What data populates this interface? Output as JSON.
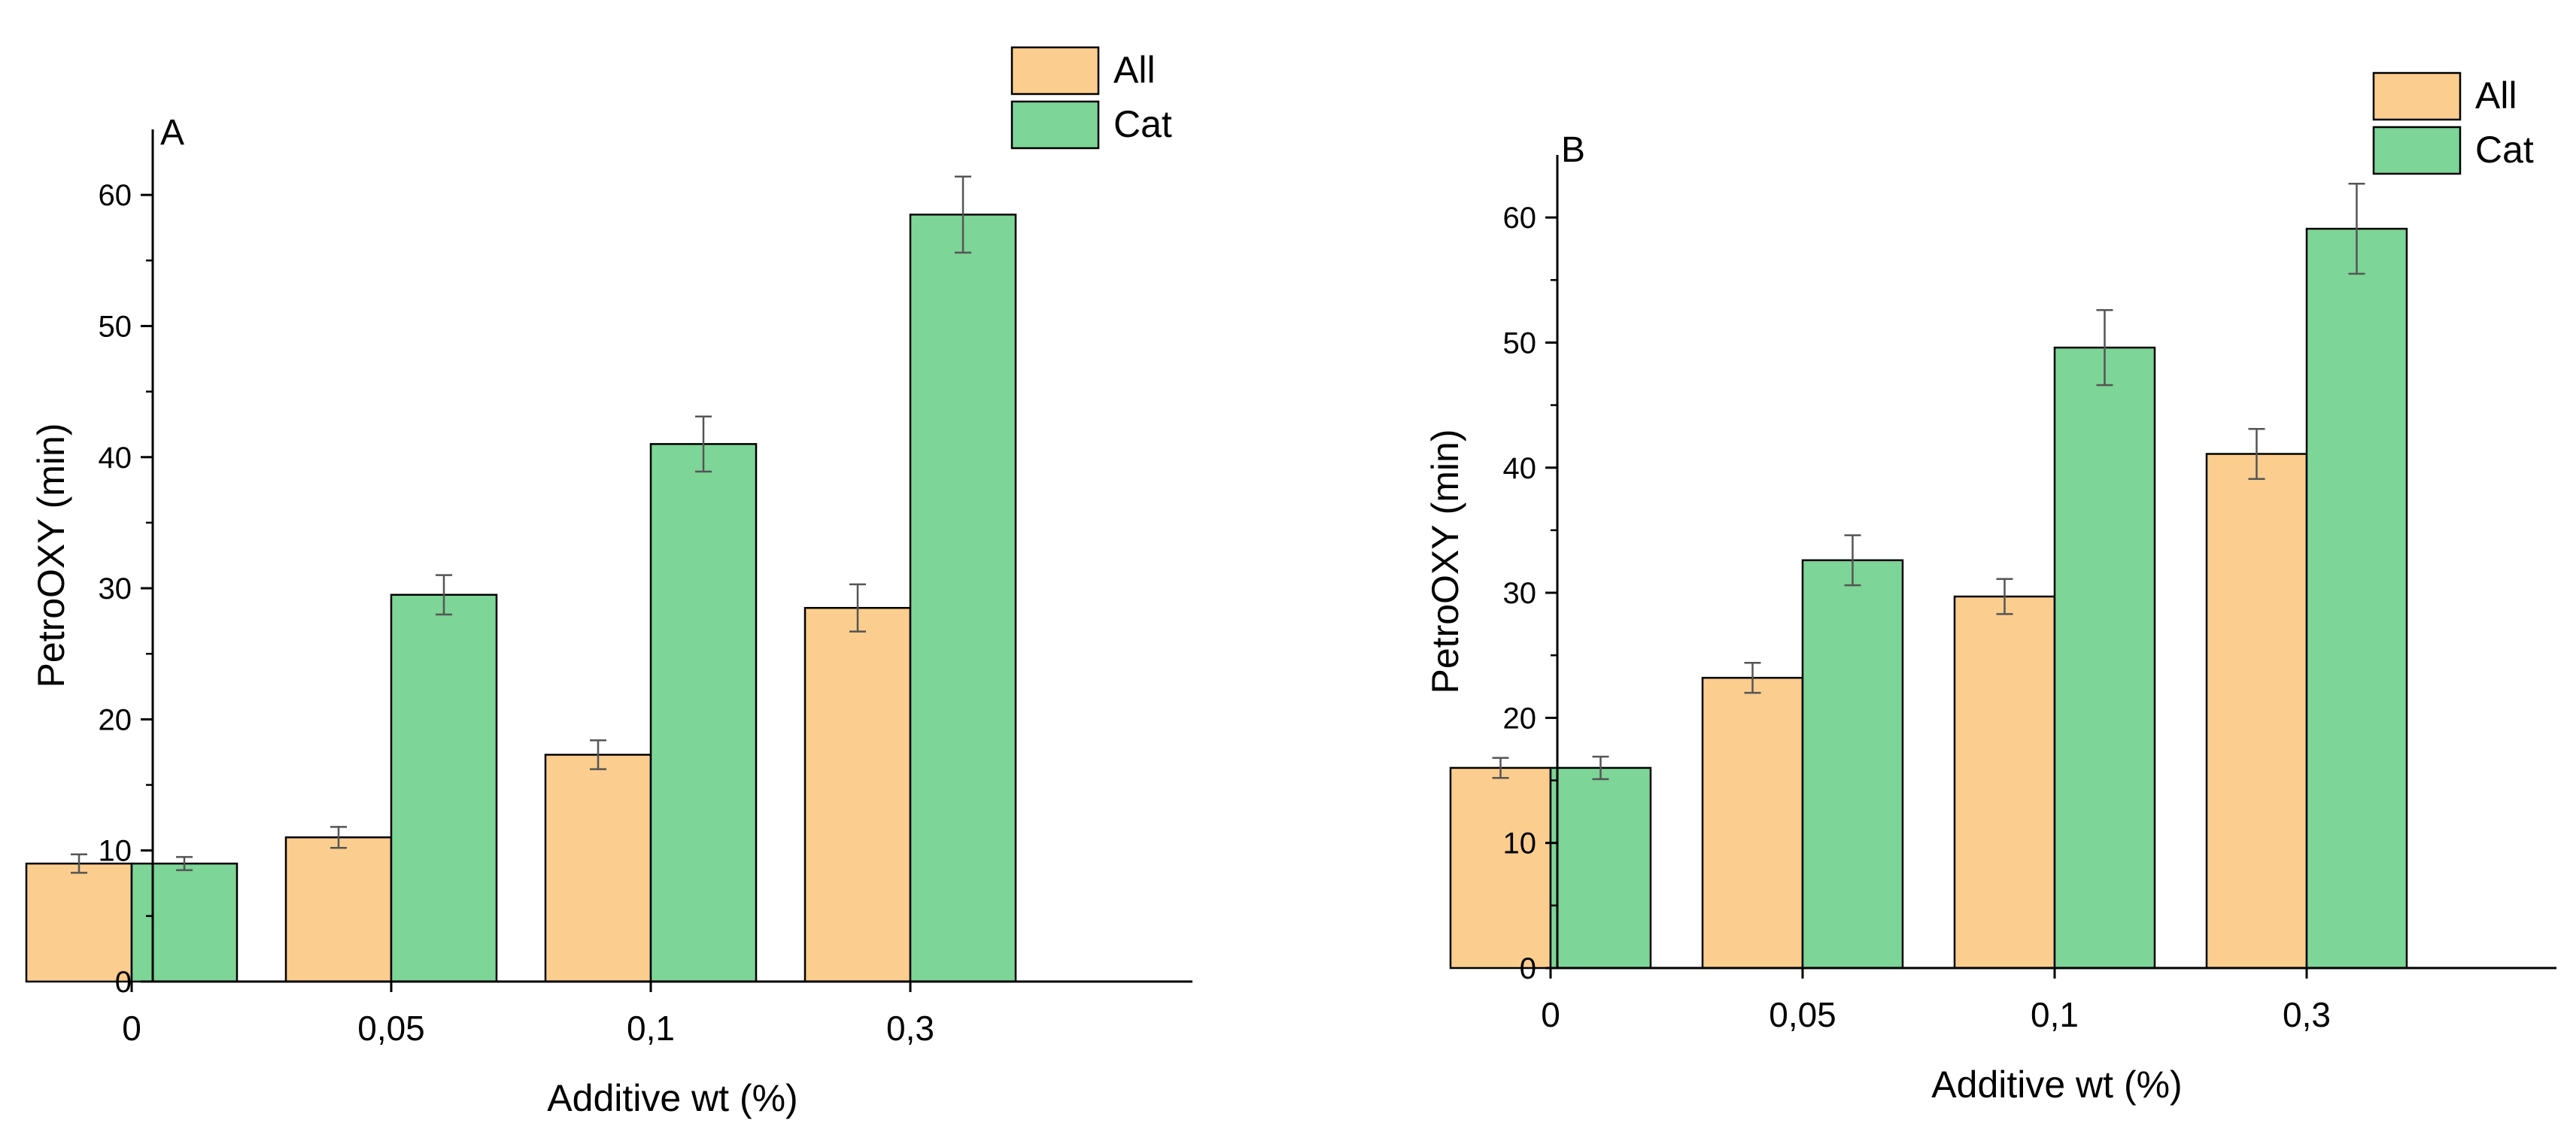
{
  "chart_data": [
    {
      "type": "bar",
      "panel_label": "A",
      "categories": [
        "0",
        "0,05",
        "0,1",
        "0,3"
      ],
      "series": [
        {
          "name": "All",
          "values": [
            9,
            11,
            17.3,
            28.5
          ],
          "errors": [
            0.7,
            0.8,
            1.1,
            1.8
          ]
        },
        {
          "name": "Cat",
          "values": [
            9,
            29.5,
            41,
            58.5
          ],
          "errors": [
            0.5,
            1.5,
            2.1,
            2.9
          ]
        }
      ],
      "xlabel": "Additive wt (%)",
      "ylabel": "PetroOXY (min)",
      "ylim": [
        0,
        65
      ],
      "yticks": [
        0,
        10,
        20,
        30,
        40,
        50,
        60
      ],
      "grid": false,
      "legend_position": "top-right"
    },
    {
      "type": "bar",
      "panel_label": "B",
      "categories": [
        "0",
        "0,05",
        "0,1",
        "0,3"
      ],
      "series": [
        {
          "name": "All",
          "values": [
            16,
            23.2,
            29.7,
            41.1
          ],
          "errors": [
            0.8,
            1.2,
            1.4,
            2.0
          ]
        },
        {
          "name": "Cat",
          "values": [
            16,
            32.6,
            49.6,
            59.1
          ],
          "errors": [
            0.9,
            2.0,
            3.0,
            3.6
          ]
        }
      ],
      "xlabel": "Additive wt (%)",
      "ylabel": "PetroOXY (min)",
      "ylim": [
        0,
        65
      ],
      "yticks": [
        0,
        10,
        20,
        30,
        40,
        50,
        60
      ],
      "grid": false,
      "legend_position": "top-right"
    }
  ],
  "colors": {
    "All": "#fbcd8e",
    "Cat": "#7dd597",
    "axis": "#000000",
    "error_bar": "#555555"
  }
}
